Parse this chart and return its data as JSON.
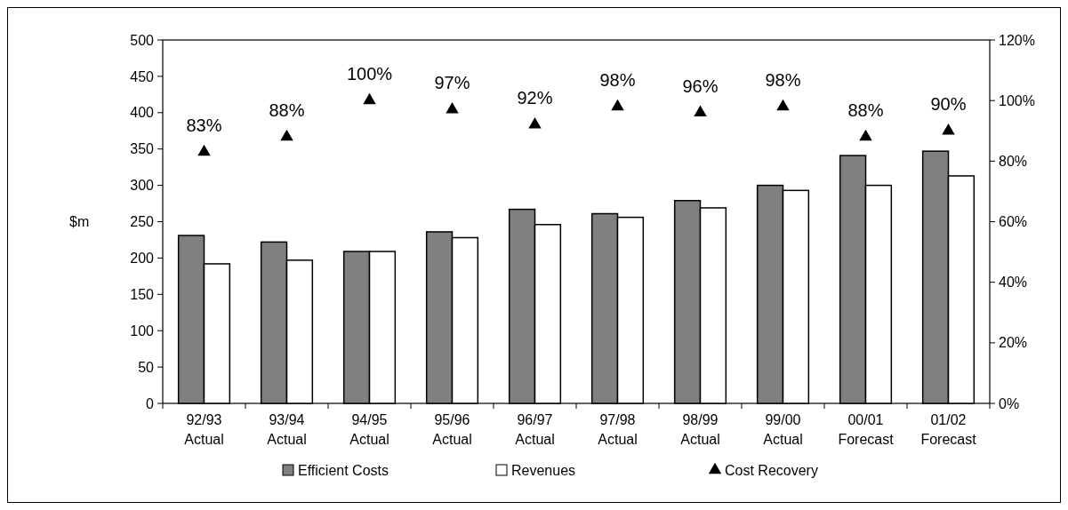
{
  "chart_data": {
    "type": "bar",
    "ylabel": "$m",
    "categories": [
      "92/93\nActual",
      "93/94\nActual",
      "94/95\nActual",
      "95/96\nActual",
      "96/97\nActual",
      "97/98\nActual",
      "98/99\nActual",
      "99/00\nActual",
      "00/01\nForecast",
      "01/02\nForecast"
    ],
    "series": [
      {
        "name": "Efficient Costs",
        "color": "#808080",
        "values": [
          231,
          222,
          209,
          236,
          267,
          261,
          279,
          300,
          341,
          347
        ]
      },
      {
        "name": "Revenues",
        "color": "#ffffff",
        "values": [
          192,
          197,
          209,
          228,
          246,
          256,
          269,
          293,
          300,
          313
        ]
      },
      {
        "name": "Cost Recovery",
        "type": "scatter",
        "axis": "y2",
        "color": "#000000",
        "marker": "triangle",
        "values": [
          83,
          88,
          100,
          97,
          92,
          98,
          96,
          98,
          88,
          90
        ],
        "value_labels": [
          "83%",
          "88%",
          "100%",
          "97%",
          "92%",
          "98%",
          "96%",
          "98%",
          "88%",
          "90%"
        ]
      }
    ],
    "ylim": [
      0,
      500
    ],
    "yticks": [
      0,
      50,
      100,
      150,
      200,
      250,
      300,
      350,
      400,
      450,
      500
    ],
    "y2lim": [
      0,
      120
    ],
    "y2ticks": [
      {
        "value": 0,
        "label": "0%"
      },
      {
        "value": 20,
        "label": "20%"
      },
      {
        "value": 40,
        "label": "40%"
      },
      {
        "value": 60,
        "label": "60%"
      },
      {
        "value": 80,
        "label": "80%"
      },
      {
        "value": 100,
        "label": "100%"
      },
      {
        "value": 120,
        "label": "120%"
      }
    ],
    "legend": "bottom",
    "grid": false
  }
}
